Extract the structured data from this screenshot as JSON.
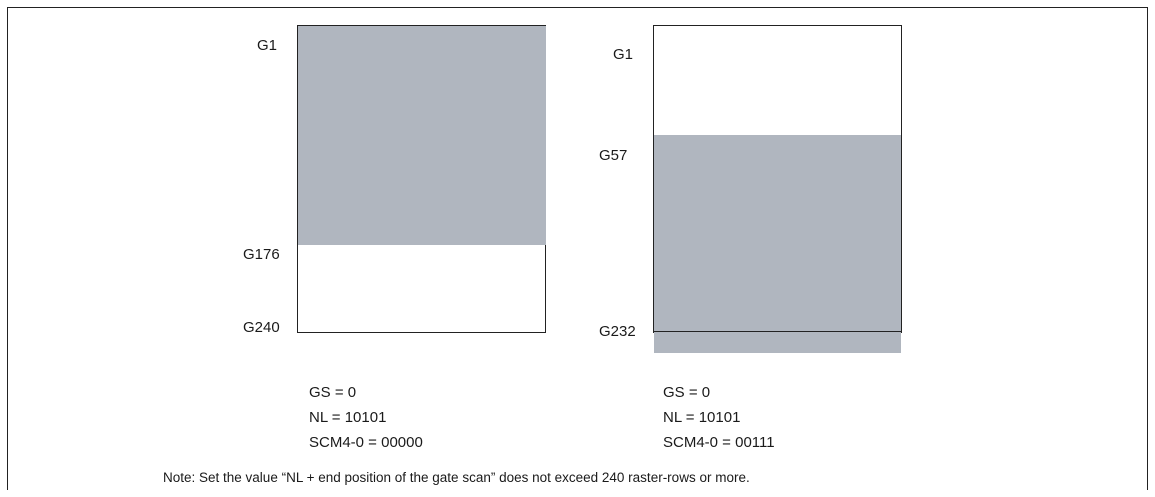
{
  "left_panel": {
    "labels": {
      "top": "G1",
      "mid": "G176",
      "bottom": "G240"
    },
    "params": [
      "GS = 0",
      "NL = 10101",
      "SCM4-0 = 00000"
    ]
  },
  "right_panel": {
    "labels": {
      "top": "G1",
      "mid": "G57",
      "bottom": "G232"
    },
    "params": [
      "GS = 0",
      "NL = 10101",
      "SCM4-0 = 00111"
    ]
  },
  "note": "Note: Set the value “NL + end position of the gate scan” does not exceed 240 raster-rows or more.",
  "colors": {
    "scan_area": "#b0b6bf",
    "outline": "#222222"
  }
}
